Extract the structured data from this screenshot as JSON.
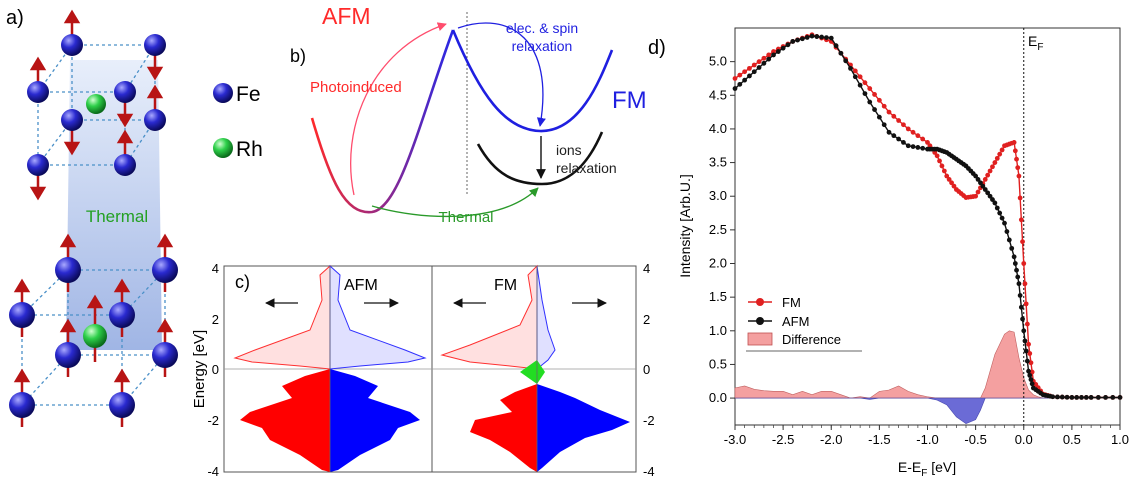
{
  "panels": {
    "a": {
      "label": "a)",
      "thermal_label": "Thermal",
      "legend": [
        {
          "name": "Fe",
          "color": "#1c1cae"
        },
        {
          "name": "Rh",
          "color": "#21b83d"
        }
      ],
      "arrow_color": "#b81414"
    },
    "b": {
      "label": "b)",
      "afm_label": "AFM",
      "fm_label": "FM",
      "photoinduced_label": "Photoinduced",
      "relaxation_line1": "elec. & spin",
      "relaxation_line2": "relaxation",
      "ions_line1": "ions",
      "ions_line2": "relaxation",
      "thermal_label": "Thermal",
      "colors": {
        "afm": "#ff2a2a",
        "fm": "#1f1fe0",
        "photoinduced": "#ff4d6d",
        "thermal": "#2a9a2a",
        "ions": "#111111"
      }
    },
    "c": {
      "label": "c)",
      "ylabel": "Energy [eV]",
      "afm_label": "AFM",
      "fm_label": "FM",
      "yticks": [
        "4",
        "2",
        "0",
        "-2",
        "-4"
      ],
      "colors": {
        "up": "#ff0000",
        "down": "#0000ff",
        "green": "#22dd22"
      }
    },
    "d": {
      "label": "d)",
      "ef_label": "E",
      "ef_sub": "F"
    }
  },
  "chart_data": {
    "type": "line",
    "panel": "d",
    "xlabel": "E-E",
    "xlabel_sub": "F",
    "xlabel_unit": " [eV]",
    "ylabel": "Intensity [Arb.U.]",
    "xlim": [
      -3.0,
      1.0
    ],
    "ylim": [
      -0.4,
      5.5
    ],
    "xticks": [
      -3.0,
      -2.5,
      -2.0,
      -1.5,
      -1.0,
      -0.5,
      0.0,
      0.5,
      1.0
    ],
    "xtick_labels": [
      "-3.0",
      "-2.5",
      "-2.0",
      "-1.5",
      "-1.0",
      "-0.5",
      "0.0",
      "0.5",
      "1.0"
    ],
    "yticks": [
      0.0,
      0.5,
      1.0,
      1.5,
      2.0,
      2.5,
      3.0,
      3.5,
      4.0,
      4.5,
      5.0
    ],
    "ytick_labels": [
      "0.0",
      "0.5",
      "1.0",
      "1.5",
      "2.0",
      "2.5",
      "3.0",
      "3.5",
      "4.0",
      "4.5",
      "5.0"
    ],
    "vertical_line_x": 0.0,
    "legend_position": "bottom-left",
    "series": [
      {
        "name": "FM",
        "color": "#e02020",
        "x": [
          -3.0,
          -2.8,
          -2.6,
          -2.4,
          -2.2,
          -2.0,
          -1.8,
          -1.6,
          -1.4,
          -1.2,
          -1.0,
          -0.9,
          -0.8,
          -0.7,
          -0.6,
          -0.5,
          -0.4,
          -0.3,
          -0.2,
          -0.1,
          -0.05,
          0.0,
          0.05,
          0.1,
          0.2,
          0.3,
          0.5,
          0.7,
          1.0
        ],
        "y": [
          4.75,
          4.95,
          5.15,
          5.3,
          5.4,
          5.3,
          4.95,
          4.6,
          4.25,
          4.0,
          3.8,
          3.6,
          3.3,
          3.1,
          2.98,
          3.0,
          3.25,
          3.5,
          3.75,
          3.8,
          3.3,
          2.0,
          0.8,
          0.25,
          0.06,
          0.02,
          0.01,
          0.01,
          0.01
        ]
      },
      {
        "name": "AFM",
        "color": "#111111",
        "x": [
          -3.0,
          -2.8,
          -2.6,
          -2.4,
          -2.2,
          -2.0,
          -1.8,
          -1.6,
          -1.4,
          -1.2,
          -1.0,
          -0.9,
          -0.8,
          -0.7,
          -0.6,
          -0.5,
          -0.4,
          -0.3,
          -0.2,
          -0.1,
          -0.05,
          0.0,
          0.05,
          0.1,
          0.2,
          0.3,
          0.5,
          0.7,
          1.0
        ],
        "y": [
          4.6,
          4.85,
          5.1,
          5.3,
          5.38,
          5.35,
          4.9,
          4.4,
          3.95,
          3.75,
          3.7,
          3.7,
          3.65,
          3.55,
          3.45,
          3.3,
          3.1,
          2.9,
          2.6,
          2.1,
          1.7,
          1.0,
          0.4,
          0.15,
          0.05,
          0.02,
          0.01,
          0.01,
          0.01
        ]
      },
      {
        "name": "Difference",
        "color": "#f08080",
        "fill": "#f4a0a0",
        "neg_fill": "#6b6bd6",
        "x": [
          -3.0,
          -2.9,
          -2.8,
          -2.7,
          -2.6,
          -2.5,
          -2.4,
          -2.3,
          -2.2,
          -2.1,
          -2.0,
          -1.9,
          -1.8,
          -1.7,
          -1.6,
          -1.5,
          -1.4,
          -1.3,
          -1.2,
          -1.1,
          -1.0,
          -0.9,
          -0.8,
          -0.7,
          -0.6,
          -0.5,
          -0.45,
          -0.4,
          -0.3,
          -0.2,
          -0.15,
          -0.1,
          -0.05,
          0.0,
          0.05,
          0.1,
          0.15,
          0.2,
          0.3
        ],
        "y": [
          0.15,
          0.18,
          0.13,
          0.11,
          0.1,
          0.1,
          0.05,
          0.1,
          0.05,
          0.1,
          0.1,
          0.05,
          0.0,
          0.02,
          -0.02,
          0.1,
          0.12,
          0.18,
          0.1,
          0.05,
          0.02,
          -0.03,
          -0.1,
          -0.28,
          -0.38,
          -0.32,
          -0.18,
          0.15,
          0.65,
          0.95,
          1.0,
          0.98,
          0.6,
          0.3,
          0.12,
          0.05,
          0.02,
          0.0,
          0.0
        ]
      }
    ]
  }
}
